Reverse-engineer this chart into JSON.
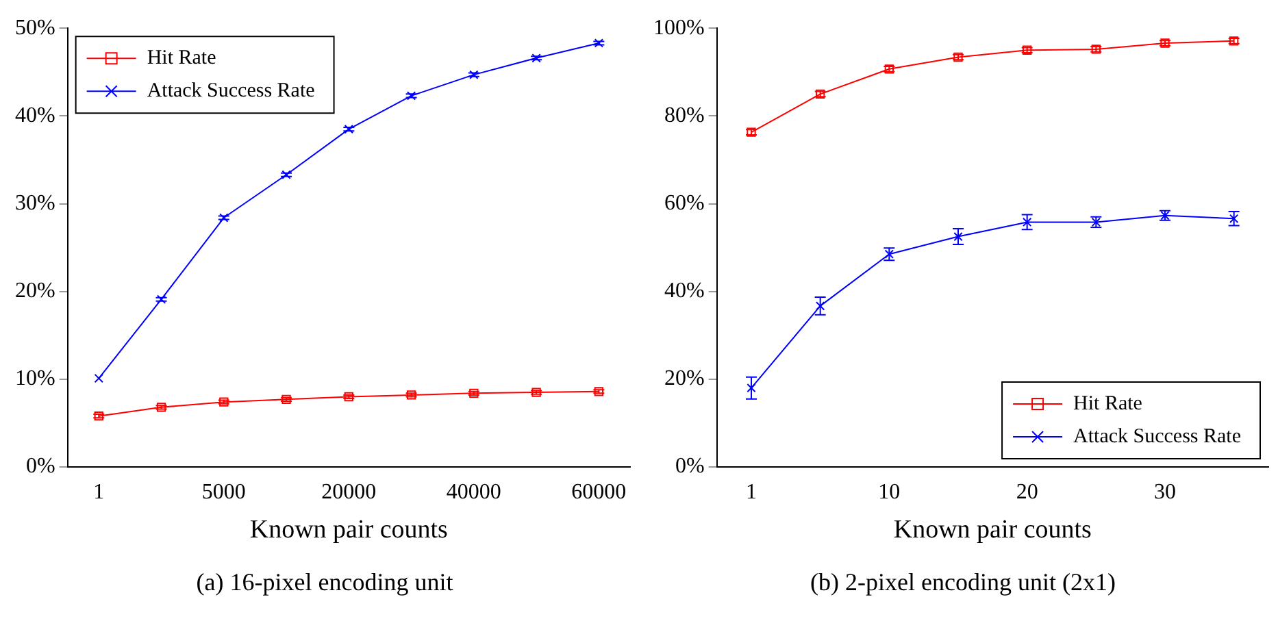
{
  "chart_data": [
    {
      "type": "line",
      "xlabel": "Known pair counts",
      "annotations": [
        "(a) 16-pixel encoding unit"
      ],
      "categories": [
        "1",
        null,
        "5000",
        null,
        "20000",
        null,
        "40000",
        null,
        "60000"
      ],
      "series": [
        {
          "name": "Hit Rate",
          "color": "#ff0000",
          "marker": "square",
          "values": [
            5.8,
            6.8,
            7.4,
            7.7,
            8.0,
            8.2,
            8.4,
            8.5,
            8.6
          ],
          "errors": [
            0.2,
            0.2,
            0.2,
            0.2,
            0.2,
            0.2,
            0.2,
            0.2,
            0.2
          ]
        },
        {
          "name": "Attack Success Rate",
          "color": "#0000ff",
          "marker": "cross",
          "values": [
            10.1,
            19.1,
            28.4,
            33.3,
            38.5,
            42.3,
            44.7,
            46.6,
            48.3
          ],
          "errors": [
            null,
            0.2,
            0.2,
            0.2,
            0.2,
            0.2,
            0.2,
            0.2,
            0.2
          ]
        }
      ],
      "ylim": [
        0,
        50
      ],
      "yticks": [
        {
          "value": 0,
          "label": "0%"
        },
        {
          "value": 10,
          "label": "10%"
        },
        {
          "value": 20,
          "label": "20%"
        },
        {
          "value": 30,
          "label": "30%"
        },
        {
          "value": 40,
          "label": "40%"
        },
        {
          "value": 50,
          "label": "50%"
        }
      ],
      "grid": false,
      "legend": "top left"
    },
    {
      "type": "line",
      "xlabel": "Known pair counts",
      "annotations": [
        "(b) 2-pixel encoding unit (2x1)"
      ],
      "categories": [
        "1",
        null,
        "10",
        null,
        "20",
        null,
        "30",
        null
      ],
      "series": [
        {
          "name": "Hit Rate",
          "color": "#ff0000",
          "marker": "square",
          "values": [
            76.3,
            85.0,
            90.7,
            93.4,
            95.0,
            95.2,
            96.6,
            97.1
          ],
          "errors": [
            0.6,
            0.6,
            0.6,
            0.6,
            0.6,
            0.6,
            0.6,
            0.6
          ]
        },
        {
          "name": "Attack Success Rate",
          "color": "#0000ff",
          "marker": "cross",
          "values": [
            18.0,
            36.7,
            48.5,
            52.5,
            55.8,
            55.8,
            57.3,
            56.6
          ],
          "errors": [
            2.5,
            2,
            1.4,
            1.8,
            1.7,
            1.2,
            1.1,
            1.6
          ]
        }
      ],
      "ylim": [
        0,
        100
      ],
      "yticks": [
        {
          "value": 0,
          "label": "0%"
        },
        {
          "value": 20,
          "label": "20%"
        },
        {
          "value": 40,
          "label": "40%"
        },
        {
          "value": 60,
          "label": "60%"
        },
        {
          "value": 80,
          "label": "80%"
        },
        {
          "value": 100,
          "label": "100%"
        }
      ],
      "grid": false,
      "legend": "bottom right"
    }
  ]
}
